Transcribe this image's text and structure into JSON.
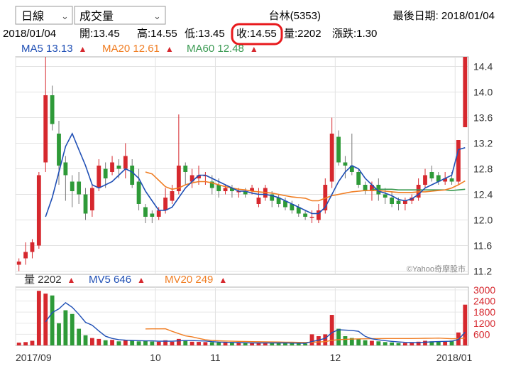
{
  "toolbar": {
    "period_select": "日線",
    "indicator_select": "成交量",
    "stock_name": "台林(5353)",
    "last_date_label": "最後日期: 2018/01/04"
  },
  "ohlc_bar": {
    "date": "2018/01/04",
    "open": "開:13.45",
    "high": "高:14.55",
    "low": "低:13.45",
    "close": "收:14.55",
    "volume": "量:2202",
    "change": "漲跌:1.30",
    "highlight_color": "#e8191c"
  },
  "ma_legend": [
    {
      "label": "MA5",
      "value": "13.13",
      "color": "#1f4fb5"
    },
    {
      "label": "MA20",
      "value": "12.61",
      "color": "#f07d22"
    },
    {
      "label": "MA60",
      "value": "12.48",
      "color": "#3a9a52"
    }
  ],
  "volume_legend": [
    {
      "label": "量",
      "value": "2202",
      "color": "#333333"
    },
    {
      "label": "MV5",
      "value": "646",
      "color": "#1f4fb5"
    },
    {
      "label": "MV20",
      "value": "249",
      "color": "#f07d22"
    }
  ],
  "watermark": "©Yahoo奇摩股市",
  "colors": {
    "up": "#d6282e",
    "down": "#2e9a38",
    "ma5": "#1f4fb5",
    "ma20": "#f07d22",
    "ma60": "#3a9a52"
  },
  "chart_data": {
    "type": "candlestick",
    "price_yticks": [
      11.2,
      11.6,
      12.0,
      12.4,
      12.8,
      13.2,
      13.6,
      14.0,
      14.4
    ],
    "price_ylim": [
      11.15,
      14.55
    ],
    "volume_yticks": [
      600,
      1200,
      1800,
      2400,
      3000
    ],
    "volume_ylim": [
      0,
      3150
    ],
    "x_ticks": [
      {
        "label": "2017/09",
        "i": 0
      },
      {
        "label": "10",
        "i": 21
      },
      {
        "label": "11",
        "i": 30
      },
      {
        "label": "12",
        "i": 48
      },
      {
        "label": "2018/01",
        "i": 66
      }
    ],
    "candles": [
      [
        11.3,
        11.35,
        11.2,
        11.4,
        150
      ],
      [
        11.4,
        11.5,
        11.3,
        11.65,
        180
      ],
      [
        11.5,
        11.65,
        11.4,
        11.7,
        250
      ],
      [
        11.6,
        12.7,
        11.55,
        12.75,
        2950
      ],
      [
        12.9,
        13.95,
        12.75,
        14.55,
        2800
      ],
      [
        13.95,
        13.5,
        13.4,
        14.1,
        2700
      ],
      [
        13.35,
        12.85,
        12.55,
        13.55,
        1200
      ],
      [
        12.9,
        12.7,
        12.3,
        13.0,
        1900
      ],
      [
        12.6,
        12.45,
        12.2,
        12.7,
        1700
      ],
      [
        12.6,
        12.4,
        12.25,
        12.75,
        900
      ],
      [
        12.4,
        12.1,
        12.0,
        12.5,
        550
      ],
      [
        12.15,
        12.5,
        12.05,
        12.55,
        400
      ],
      [
        12.5,
        12.85,
        12.45,
        12.95,
        350
      ],
      [
        12.8,
        12.65,
        12.5,
        12.9,
        280
      ],
      [
        12.75,
        12.9,
        12.7,
        13.0,
        300
      ],
      [
        12.85,
        12.8,
        12.65,
        12.95,
        220
      ],
      [
        12.8,
        13.0,
        12.65,
        13.2,
        280
      ],
      [
        12.85,
        12.55,
        12.5,
        12.95,
        260
      ],
      [
        12.6,
        12.25,
        12.15,
        12.8,
        220
      ],
      [
        12.2,
        12.05,
        11.95,
        12.25,
        250
      ],
      [
        12.1,
        12.05,
        11.95,
        12.15,
        210
      ],
      [
        12.05,
        12.15,
        12.0,
        12.2,
        200
      ],
      [
        12.15,
        12.35,
        12.1,
        12.5,
        280
      ],
      [
        12.3,
        12.45,
        12.25,
        12.55,
        200
      ],
      [
        12.45,
        12.85,
        12.4,
        13.65,
        350
      ],
      [
        12.85,
        12.75,
        12.55,
        12.9,
        280
      ],
      [
        12.6,
        12.7,
        12.5,
        12.8,
        200
      ],
      [
        12.65,
        12.7,
        12.55,
        12.85,
        190
      ],
      [
        12.7,
        12.7,
        12.55,
        12.75,
        180
      ],
      [
        12.6,
        12.5,
        12.4,
        12.7,
        170
      ],
      [
        12.55,
        12.45,
        12.35,
        12.65,
        160
      ],
      [
        12.45,
        12.5,
        12.4,
        12.55,
        150
      ],
      [
        12.5,
        12.45,
        12.35,
        12.55,
        140
      ],
      [
        12.45,
        12.45,
        12.35,
        12.5,
        140
      ],
      [
        12.45,
        12.4,
        12.35,
        12.5,
        130
      ],
      [
        12.45,
        12.5,
        12.4,
        12.55,
        120
      ],
      [
        12.25,
        12.35,
        12.2,
        12.5,
        150
      ],
      [
        12.35,
        12.5,
        12.3,
        12.55,
        140
      ],
      [
        12.4,
        12.3,
        12.2,
        12.45,
        130
      ],
      [
        12.35,
        12.25,
        12.2,
        12.4,
        130
      ],
      [
        12.3,
        12.2,
        12.15,
        12.35,
        120
      ],
      [
        12.25,
        12.15,
        12.1,
        12.3,
        120
      ],
      [
        12.2,
        12.1,
        12.05,
        12.25,
        110
      ],
      [
        12.1,
        12.05,
        12.0,
        12.15,
        100
      ],
      [
        12.05,
        12.05,
        11.95,
        12.15,
        600
      ],
      [
        12.0,
        12.15,
        11.95,
        12.25,
        500
      ],
      [
        12.15,
        12.55,
        12.1,
        12.65,
        600
      ],
      [
        12.6,
        13.35,
        12.5,
        13.6,
        1650
      ],
      [
        13.3,
        12.9,
        12.85,
        13.4,
        900
      ],
      [
        12.9,
        12.85,
        12.65,
        13.0,
        500
      ],
      [
        12.85,
        12.75,
        12.7,
        13.35,
        400
      ],
      [
        12.75,
        12.55,
        12.5,
        12.8,
        350
      ],
      [
        12.55,
        12.45,
        12.4,
        12.6,
        280
      ],
      [
        12.45,
        12.55,
        12.3,
        12.6,
        250
      ],
      [
        12.55,
        12.4,
        12.3,
        12.65,
        220
      ],
      [
        12.4,
        12.35,
        12.25,
        12.5,
        180
      ],
      [
        12.35,
        12.25,
        12.2,
        12.45,
        160
      ],
      [
        12.3,
        12.25,
        12.15,
        12.35,
        130
      ],
      [
        12.25,
        12.3,
        12.15,
        12.35,
        130
      ],
      [
        12.3,
        12.35,
        12.25,
        12.4,
        160
      ],
      [
        12.35,
        12.55,
        12.3,
        12.65,
        200
      ],
      [
        12.55,
        12.7,
        12.5,
        12.8,
        250
      ],
      [
        12.75,
        12.65,
        12.6,
        12.85,
        220
      ],
      [
        12.7,
        12.6,
        12.55,
        12.75,
        200
      ],
      [
        12.6,
        12.65,
        12.55,
        12.75,
        220
      ],
      [
        12.65,
        12.6,
        12.55,
        12.75,
        260
      ],
      [
        12.6,
        13.25,
        12.55,
        13.25,
        700
      ],
      [
        13.45,
        14.55,
        13.45,
        14.55,
        2202
      ]
    ],
    "ma5": [
      null,
      null,
      null,
      null,
      12.05,
      12.35,
      12.75,
      13.15,
      13.35,
      13.1,
      12.85,
      12.55,
      12.5,
      12.55,
      12.6,
      12.7,
      12.8,
      12.75,
      12.65,
      12.45,
      12.3,
      12.15,
      12.15,
      12.2,
      12.35,
      12.5,
      12.6,
      12.7,
      12.7,
      12.65,
      12.6,
      12.55,
      12.5,
      12.45,
      12.45,
      12.42,
      12.4,
      12.4,
      12.38,
      12.35,
      12.3,
      12.25,
      12.2,
      12.15,
      12.1,
      12.1,
      12.2,
      12.4,
      12.6,
      12.75,
      12.85,
      12.8,
      12.65,
      12.55,
      12.45,
      12.42,
      12.38,
      12.32,
      12.3,
      12.33,
      12.4,
      12.5,
      12.55,
      12.6,
      12.65,
      12.7,
      13.1,
      13.13
    ],
    "ma20": [
      null,
      null,
      null,
      null,
      null,
      null,
      null,
      null,
      null,
      null,
      null,
      null,
      null,
      null,
      null,
      null,
      null,
      null,
      null,
      12.75,
      12.72,
      12.62,
      12.52,
      12.48,
      12.5,
      12.55,
      12.58,
      12.6,
      12.6,
      12.58,
      12.55,
      12.52,
      12.5,
      12.48,
      12.47,
      12.45,
      12.44,
      12.43,
      12.42,
      12.4,
      12.38,
      12.36,
      12.35,
      12.34,
      12.3,
      12.3,
      12.34,
      12.38,
      12.4,
      12.42,
      12.44,
      12.45,
      12.46,
      12.46,
      12.46,
      12.45,
      12.44,
      12.43,
      12.43,
      12.43,
      12.44,
      12.44,
      12.45,
      12.46,
      12.47,
      12.5,
      12.55,
      12.61
    ],
    "ma60": [
      null,
      null,
      null,
      null,
      null,
      null,
      null,
      null,
      null,
      null,
      null,
      null,
      null,
      null,
      null,
      null,
      null,
      null,
      null,
      null,
      null,
      null,
      null,
      null,
      null,
      null,
      null,
      null,
      null,
      null,
      null,
      null,
      null,
      null,
      null,
      null,
      null,
      null,
      null,
      null,
      null,
      null,
      null,
      null,
      null,
      null,
      null,
      null,
      null,
      null,
      null,
      null,
      null,
      12.48,
      12.48,
      12.48,
      12.48,
      12.47,
      12.47,
      12.47,
      12.47,
      12.47,
      12.47,
      12.47,
      12.47,
      12.46,
      12.47,
      12.48
    ]
  }
}
